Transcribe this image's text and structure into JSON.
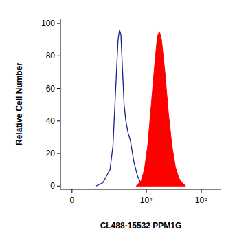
{
  "chart_data": {
    "type": "area",
    "x_label": "CL488-15532 PPM1G",
    "y_label": "Relative Cell Number",
    "xlim": [
      -450,
      230000
    ],
    "xticks": [
      0,
      {
        "value": 10000,
        "label": "10⁴"
      },
      {
        "value": 100000,
        "label": "10⁵"
      }
    ],
    "ylim": [
      -2,
      103
    ],
    "yticks": [
      0,
      20,
      40,
      60,
      80,
      100
    ],
    "grid": false,
    "series": [
      {
        "type": "line",
        "color": "#1c1c8a",
        "x": [
          1060,
          1500,
          2100,
          2400,
          2800,
          3000,
          3200,
          3400,
          3600,
          3900,
          4200,
          4600,
          5100,
          5900,
          6900,
          7900,
          9200
        ],
        "values": [
          0,
          2,
          10,
          25,
          70,
          90,
          96,
          93,
          75,
          50,
          40,
          33,
          28,
          15,
          6,
          2,
          0
        ]
      },
      {
        "type": "area",
        "color": "#ff0000",
        "x": [
          6500,
          8000,
          9200,
          10600,
          12300,
          14200,
          15900,
          17300,
          18900,
          21800,
          25200,
          29200,
          33700,
          38900,
          44900,
          51900
        ],
        "values": [
          0,
          3,
          10,
          25,
          50,
          75,
          92,
          95,
          90,
          70,
          45,
          25,
          12,
          5,
          2,
          0
        ]
      }
    ]
  }
}
